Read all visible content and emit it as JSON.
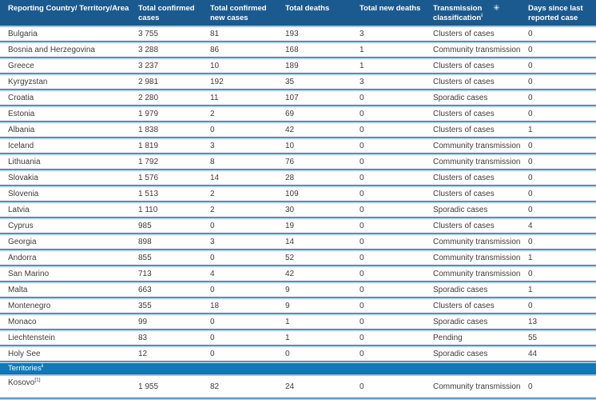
{
  "colors": {
    "header_bg": "#1B5A8F",
    "section_band_bg": "#0E7AB8",
    "row_separator_light": "#9FC8E6",
    "row_separator_dark": "#2B5F94",
    "body_text": "#3D3D3D",
    "header_text": "#FFFFFF"
  },
  "table": {
    "columns": [
      {
        "label": "Reporting Country/ Territory/Area"
      },
      {
        "label": "Total confirmed cases"
      },
      {
        "label": "Total confirmed new cases"
      },
      {
        "label": "Total deaths"
      },
      {
        "label": "Total new deaths"
      },
      {
        "line1": "Transmission",
        "asterisk": "✳",
        "line2": "classification",
        "superscript": "i"
      },
      {
        "label": "Days since last reported case"
      }
    ],
    "rows": [
      {
        "country": "Bulgaria",
        "confirmed": "3 755",
        "new_cases": "81",
        "deaths": "193",
        "new_deaths": "3",
        "classification": "Clusters of cases",
        "days": "0"
      },
      {
        "country": "Bosnia and Herzegovina",
        "confirmed": "3 288",
        "new_cases": "86",
        "deaths": "168",
        "new_deaths": "1",
        "classification": "Community transmission",
        "days": "0"
      },
      {
        "country": "Greece",
        "confirmed": "3 237",
        "new_cases": "10",
        "deaths": "189",
        "new_deaths": "1",
        "classification": "Clusters of cases",
        "days": "0"
      },
      {
        "country": "Kyrgyzstan",
        "confirmed": "2 981",
        "new_cases": "192",
        "deaths": "35",
        "new_deaths": "3",
        "classification": "Clusters of cases",
        "days": "0"
      },
      {
        "country": "Croatia",
        "confirmed": "2 280",
        "new_cases": "11",
        "deaths": "107",
        "new_deaths": "0",
        "classification": "Sporadic cases",
        "days": "0"
      },
      {
        "country": "Estonia",
        "confirmed": "1 979",
        "new_cases": "2",
        "deaths": "69",
        "new_deaths": "0",
        "classification": "Clusters of cases",
        "days": "0"
      },
      {
        "country": "Albania",
        "confirmed": "1 838",
        "new_cases": "0",
        "deaths": "42",
        "new_deaths": "0",
        "classification": "Clusters of cases",
        "days": "1"
      },
      {
        "country": "Iceland",
        "confirmed": "1 819",
        "new_cases": "3",
        "deaths": "10",
        "new_deaths": "0",
        "classification": "Community transmission",
        "days": "0"
      },
      {
        "country": "Lithuania",
        "confirmed": "1 792",
        "new_cases": "8",
        "deaths": "76",
        "new_deaths": "0",
        "classification": "Community transmission",
        "days": "0"
      },
      {
        "country": "Slovakia",
        "confirmed": "1 576",
        "new_cases": "14",
        "deaths": "28",
        "new_deaths": "0",
        "classification": "Clusters of cases",
        "days": "0"
      },
      {
        "country": "Slovenia",
        "confirmed": "1 513",
        "new_cases": "2",
        "deaths": "109",
        "new_deaths": "0",
        "classification": "Clusters of cases",
        "days": "0"
      },
      {
        "country": "Latvia",
        "confirmed": "1 110",
        "new_cases": "2",
        "deaths": "30",
        "new_deaths": "0",
        "classification": "Sporadic cases",
        "days": "0"
      },
      {
        "country": "Cyprus",
        "confirmed": "985",
        "new_cases": "0",
        "deaths": "19",
        "new_deaths": "0",
        "classification": "Clusters of cases",
        "days": "4"
      },
      {
        "country": "Georgia",
        "confirmed": "898",
        "new_cases": "3",
        "deaths": "14",
        "new_deaths": "0",
        "classification": "Community transmission",
        "days": "0"
      },
      {
        "country": "Andorra",
        "confirmed": "855",
        "new_cases": "0",
        "deaths": "52",
        "new_deaths": "0",
        "classification": "Community transmission",
        "days": "1"
      },
      {
        "country": "San Marino",
        "confirmed": "713",
        "new_cases": "4",
        "deaths": "42",
        "new_deaths": "0",
        "classification": "Community transmission",
        "days": "0"
      },
      {
        "country": "Malta",
        "confirmed": "663",
        "new_cases": "0",
        "deaths": "9",
        "new_deaths": "0",
        "classification": "Sporadic cases",
        "days": "1"
      },
      {
        "country": "Montenegro",
        "confirmed": "355",
        "new_cases": "18",
        "deaths": "9",
        "new_deaths": "0",
        "classification": "Clusters of cases",
        "days": "0"
      },
      {
        "country": "Monaco",
        "confirmed": "99",
        "new_cases": "0",
        "deaths": "1",
        "new_deaths": "0",
        "classification": "Sporadic cases",
        "days": "13"
      },
      {
        "country": "Liechtenstein",
        "confirmed": "83",
        "new_cases": "0",
        "deaths": "1",
        "new_deaths": "0",
        "classification": "Pending",
        "days": "55"
      },
      {
        "country": "Holy See",
        "confirmed": "12",
        "new_cases": "0",
        "deaths": "0",
        "new_deaths": "0",
        "classification": "Sporadic cases",
        "days": "44"
      }
    ],
    "section": {
      "label": "Territories",
      "superscript": "ii"
    },
    "territory_rows": [
      {
        "country": "Kosovo",
        "superscript": "[1]",
        "confirmed": "1 955",
        "new_cases": "82",
        "deaths": "24",
        "new_deaths": "0",
        "classification": "Community transmission",
        "days": "0"
      }
    ]
  }
}
